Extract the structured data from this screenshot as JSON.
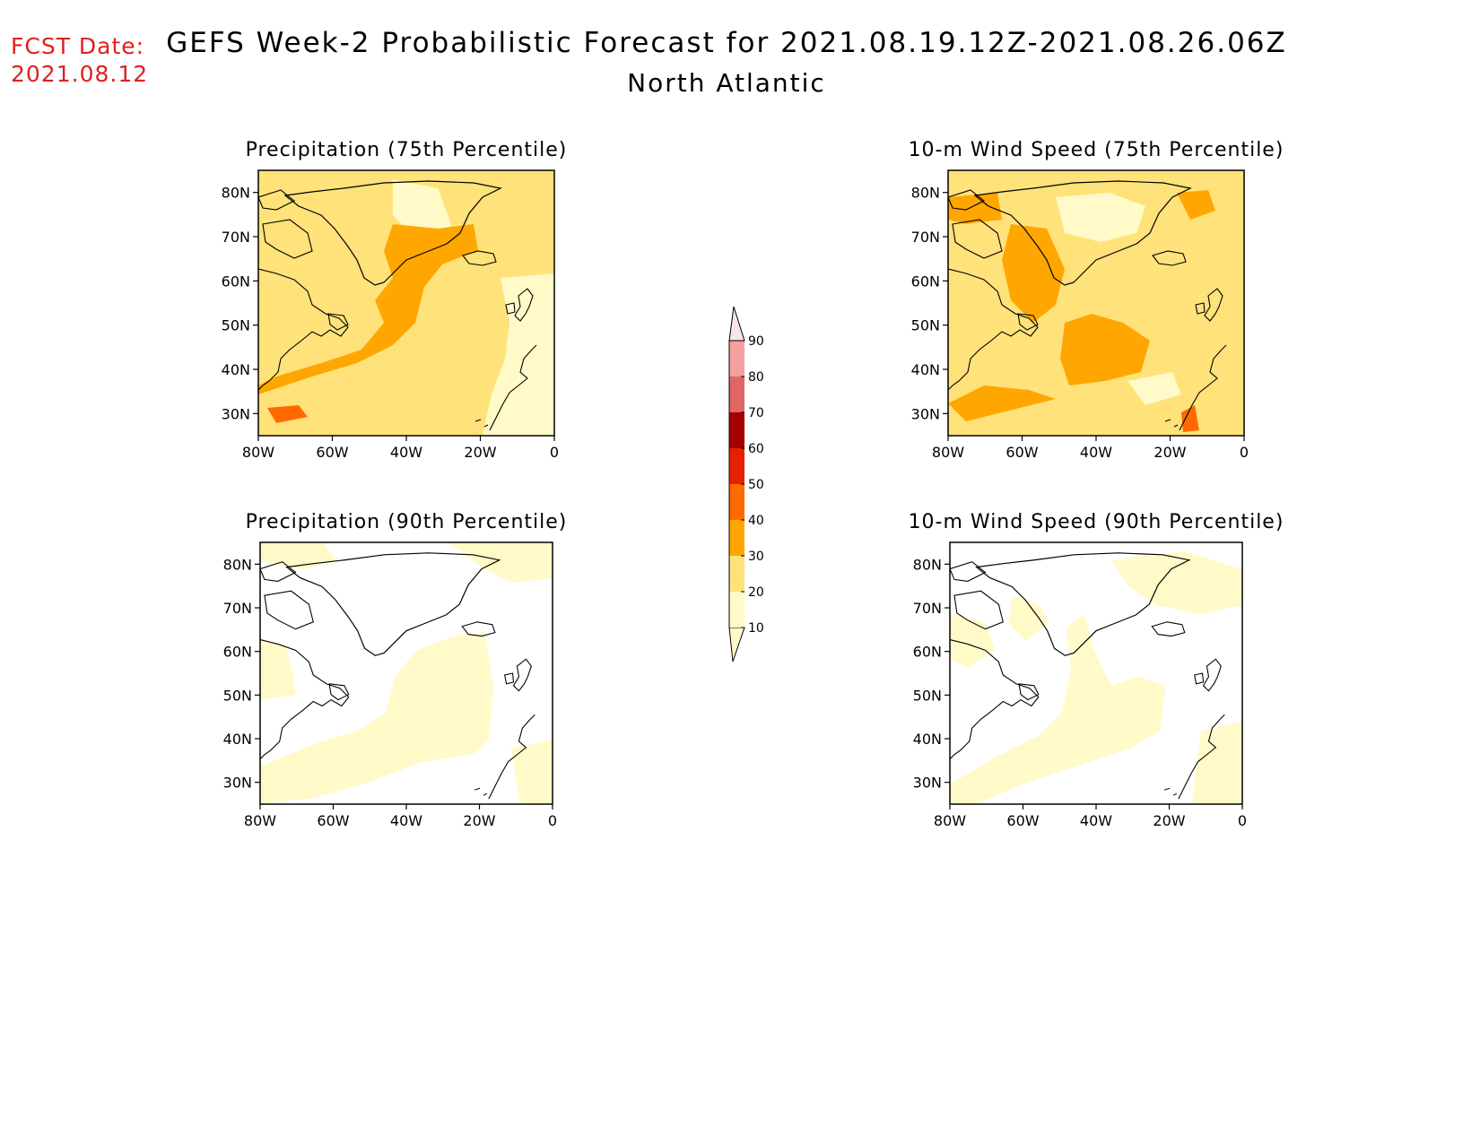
{
  "header": {
    "fcst_label": "FCST Date:",
    "fcst_date": "2021.08.12",
    "title": "GEFS Week-2 Probabilistic Forecast for 2021.08.19.12Z-2021.08.26.06Z",
    "subtitle": "North Atlantic"
  },
  "colors": {
    "c10": "#fffac8",
    "c20": "#ffe27a",
    "c30": "#ffa600",
    "c40": "#ff6a00",
    "c50": "#e52200",
    "c60": "#a40000",
    "c70": "#e06666",
    "c80": "#f4a0a0",
    "c90": "#fde4e4",
    "land": "#000000"
  },
  "axes": {
    "lon_ticks": [
      "80W",
      "60W",
      "40W",
      "20W",
      "0"
    ],
    "lat_ticks": [
      "80N",
      "70N",
      "60N",
      "50N",
      "40N",
      "30N"
    ],
    "lon_range": [
      -80,
      0
    ],
    "lat_range": [
      25,
      85
    ]
  },
  "colorbar": {
    "levels": [
      "10",
      "20",
      "30",
      "40",
      "50",
      "60",
      "70",
      "80",
      "90"
    ]
  },
  "panels": [
    {
      "id": "precip75",
      "title": "Precipitation (75th Percentile)"
    },
    {
      "id": "wind75",
      "title": "10-m Wind Speed (75th Percentile)"
    },
    {
      "id": "precip90",
      "title": "Precipitation (90th Percentile)"
    },
    {
      "id": "wind90",
      "title": "10-m Wind Speed (90th Percentile)"
    }
  ]
}
